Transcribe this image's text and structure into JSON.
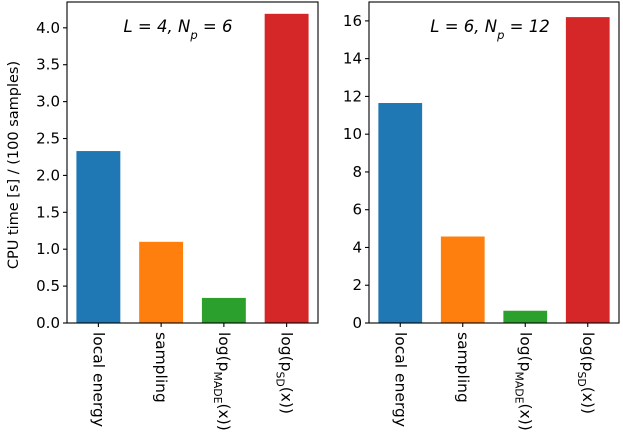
{
  "chart_data": [
    {
      "type": "bar",
      "annotation": {
        "base": "L = 4, N",
        "sub": "p",
        "tail": " = 6"
      },
      "ylabel": "CPU time [s] / (100 samples)",
      "xlabel": "",
      "ylim": [
        0,
        4.35
      ],
      "yticks": [
        "0.0",
        "0.5",
        "1.0",
        "1.5",
        "2.0",
        "2.5",
        "3.0",
        "3.5",
        "4.0"
      ],
      "categories": [
        {
          "base": "local energy",
          "sub": "",
          "tail": ""
        },
        {
          "base": "sampling",
          "sub": "",
          "tail": ""
        },
        {
          "base": "log(p",
          "sub": "MADE",
          "tail": "(x))"
        },
        {
          "base": "log(p",
          "sub": "SD",
          "tail": "(x))"
        }
      ],
      "values": [
        2.33,
        1.1,
        0.34,
        4.19
      ],
      "colors": [
        "#1f77b4",
        "#ff7f0e",
        "#2ca02c",
        "#d62728"
      ],
      "grid": false
    },
    {
      "type": "bar",
      "annotation": {
        "base": "L = 6, N",
        "sub": "p",
        "tail": " = 12"
      },
      "ylabel": "",
      "xlabel": "",
      "ylim": [
        0,
        17.0
      ],
      "yticks": [
        "0",
        "2",
        "4",
        "6",
        "8",
        "10",
        "12",
        "14",
        "16"
      ],
      "categories": [
        {
          "base": "local energy",
          "sub": "",
          "tail": ""
        },
        {
          "base": "sampling",
          "sub": "",
          "tail": ""
        },
        {
          "base": "log(p",
          "sub": "MADE",
          "tail": "(x))"
        },
        {
          "base": "log(p",
          "sub": "SD",
          "tail": "(x))"
        }
      ],
      "values": [
        11.65,
        4.58,
        0.65,
        16.2
      ],
      "colors": [
        "#1f77b4",
        "#ff7f0e",
        "#2ca02c",
        "#d62728"
      ],
      "grid": false
    }
  ]
}
